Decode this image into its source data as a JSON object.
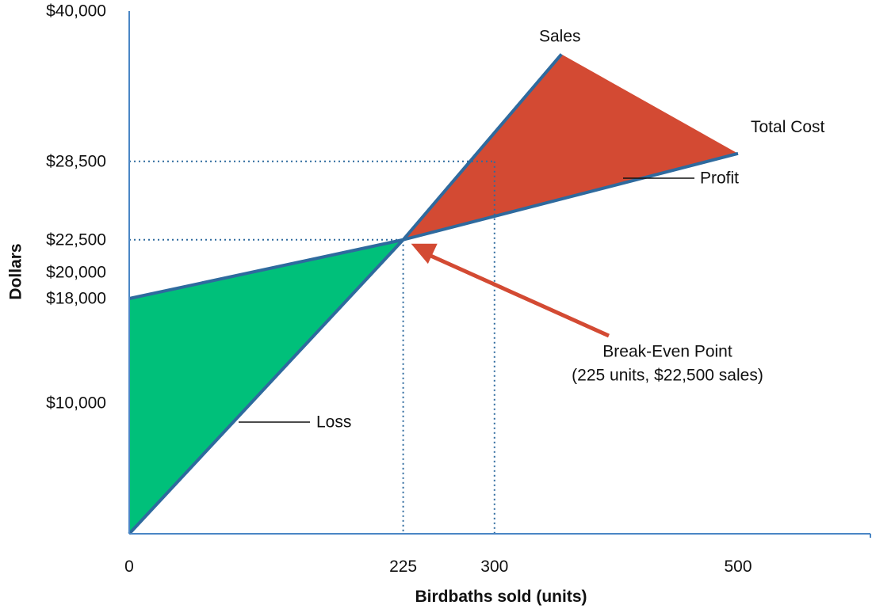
{
  "chart_data": {
    "type": "line",
    "xlabel": "Birdbaths sold (units)",
    "ylabel": "Dollars",
    "xlim": [
      0,
      640
    ],
    "ylim": [
      0,
      40000
    ],
    "x_ticks": [
      {
        "value": 0,
        "label": "0"
      },
      {
        "value": 225,
        "label": "225"
      },
      {
        "value": 300,
        "label": "300"
      },
      {
        "value": 500,
        "label": "500"
      }
    ],
    "y_ticks": [
      {
        "value": 10000,
        "label": "$10,000"
      },
      {
        "value": 18000,
        "label": "$18,000"
      },
      {
        "value": 20000,
        "label": "$20,000"
      },
      {
        "value": 22500,
        "label": "$22,500"
      },
      {
        "value": 28500,
        "label": "$28,500"
      },
      {
        "value": 40000,
        "label": "$40,000"
      }
    ],
    "series": [
      {
        "name": "Sales",
        "x": [
          0,
          225,
          355
        ],
        "y": [
          0,
          22500,
          36700
        ]
      },
      {
        "name": "Total Cost",
        "x": [
          0,
          225,
          500
        ],
        "y": [
          18000,
          22500,
          29100
        ]
      }
    ],
    "regions": [
      {
        "label": "Loss",
        "color": "#00c07a"
      },
      {
        "label": "Profit",
        "color": "#d34a33"
      }
    ],
    "guides": [
      {
        "x": 225,
        "y": 22500
      },
      {
        "x": 300,
        "y": 28500
      }
    ],
    "break_even": {
      "x": 225,
      "y": 22500,
      "label_line1": "Break-Even Point",
      "label_line2": "(225 units, $22,500 sales)"
    },
    "colors": {
      "line": "#2e6a9e",
      "guide": "#2e6a9e",
      "arrow": "#d34a33",
      "axis": "#4a86c5"
    }
  }
}
